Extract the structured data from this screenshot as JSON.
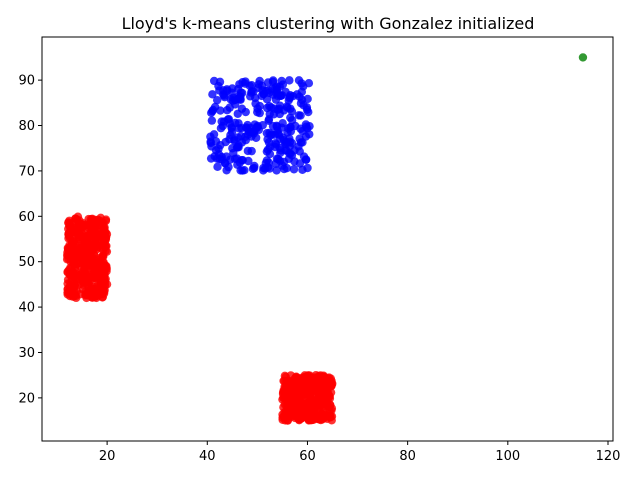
{
  "chart_data": {
    "type": "scatter",
    "title": "Lloyd's k-means clustering with Gonzalez initialized",
    "xlabel": "",
    "ylabel": "",
    "xlim": [
      7,
      121
    ],
    "ylim": [
      10.5,
      99.5
    ],
    "xticks": [
      20,
      40,
      60,
      80,
      100,
      120
    ],
    "yticks": [
      20,
      30,
      40,
      50,
      60,
      70,
      80,
      90
    ],
    "grid": false,
    "legend": "none",
    "clusters": [
      {
        "color": "#0000ff",
        "x_range": [
          40.5,
          60.5
        ],
        "y_range": [
          70,
          90
        ],
        "count": 300
      },
      {
        "color": "#ff0000",
        "x_range": [
          12,
          20
        ],
        "y_range": [
          42,
          60
        ],
        "count": 420
      },
      {
        "color": "#ff0000",
        "x_range": [
          55,
          65
        ],
        "y_range": [
          15,
          25
        ],
        "count": 380
      }
    ],
    "points": [
      {
        "x": 115,
        "y": 95,
        "color": "#008000"
      }
    ]
  }
}
